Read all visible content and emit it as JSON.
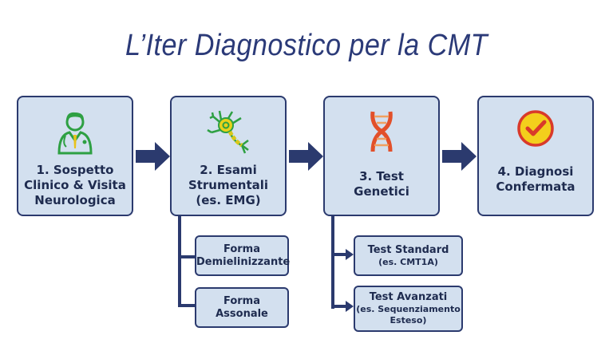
{
  "title": "L’Iter Diagnostico per la CMT",
  "steps": [
    {
      "label": "1. Sospetto\nClinico & Visita\nNeurologica",
      "icon": "doctor-icon"
    },
    {
      "label": "2. Esami\nStrumentali\n(es. EMG)",
      "icon": "neuron-icon"
    },
    {
      "label": "3. Test\nGenetici",
      "icon": "dna-icon"
    },
    {
      "label": "4. Diagnosi\nConfermata",
      "icon": "checkmark-icon"
    }
  ],
  "exam_branches": [
    {
      "label": "Forma\nDemielinizzante"
    },
    {
      "label": "Forma\nAssonale"
    }
  ],
  "genetic_branches": [
    {
      "label": "Test Standard",
      "detail": "(es. CMT1A)"
    },
    {
      "label": "Test Avanzati",
      "detail": "(es. Sequenziamento\nEsteso)"
    }
  ],
  "colors": {
    "box_fill": "#d3e0ef",
    "border": "#2b3a6e",
    "title": "#2b3a78"
  }
}
